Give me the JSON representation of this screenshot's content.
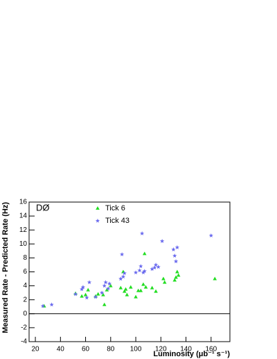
{
  "chart_data": {
    "type": "scatter",
    "x_label": "Luminosity (μb⁻¹ s⁻¹)",
    "y_label": "Measured Rate - Predicted Rate (Hz)",
    "annotation": "DØ",
    "xlim": [
      15,
      175
    ],
    "xticks": [
      20,
      40,
      60,
      80,
      100,
      120,
      140,
      160
    ],
    "ylim": [
      -4,
      16
    ],
    "yticks": [
      -4,
      -2,
      0,
      2,
      4,
      6,
      8,
      10,
      12,
      14,
      16
    ],
    "series": [
      {
        "name": "Tick 6",
        "color": "#22dd22",
        "marker": "triangle",
        "x": [
          27,
          52,
          57,
          60,
          62,
          68,
          70,
          74,
          75,
          77,
          80,
          88,
          90,
          91,
          92,
          93,
          96,
          100,
          102,
          104,
          106,
          107,
          108,
          113,
          116,
          122,
          123,
          131,
          132,
          133,
          134,
          163
        ],
        "values": [
          1.1,
          2.9,
          2.5,
          2.7,
          3.4,
          2.5,
          2.8,
          2.7,
          1.3,
          3.4,
          4.0,
          3.7,
          6.0,
          3.2,
          3.5,
          2.7,
          3.8,
          2.4,
          3.3,
          3.3,
          4.2,
          8.6,
          3.8,
          3.7,
          3.2,
          5.0,
          4.5,
          4.8,
          5.2,
          6.0,
          5.5,
          5.0
        ]
      },
      {
        "name": "Tick 43",
        "color": "#6a6aee",
        "marker": "star",
        "x": [
          26,
          33,
          52,
          57,
          58,
          61,
          63,
          68,
          73,
          75,
          76,
          78,
          79,
          88,
          89,
          90,
          91,
          100,
          103,
          104,
          105,
          106,
          107,
          113,
          115,
          116,
          118,
          121,
          130,
          131,
          132,
          133,
          160
        ],
        "values": [
          1.1,
          1.3,
          2.8,
          3.5,
          3.8,
          2.3,
          4.5,
          2.4,
          3.0,
          4.0,
          4.5,
          3.6,
          4.3,
          5.0,
          8.5,
          5.3,
          5.8,
          5.9,
          6.2,
          6.8,
          11.5,
          5.9,
          6.1,
          6.4,
          6.6,
          7.0,
          6.7,
          10.4,
          9.2,
          8.3,
          7.5,
          9.5,
          11.2
        ]
      }
    ]
  }
}
